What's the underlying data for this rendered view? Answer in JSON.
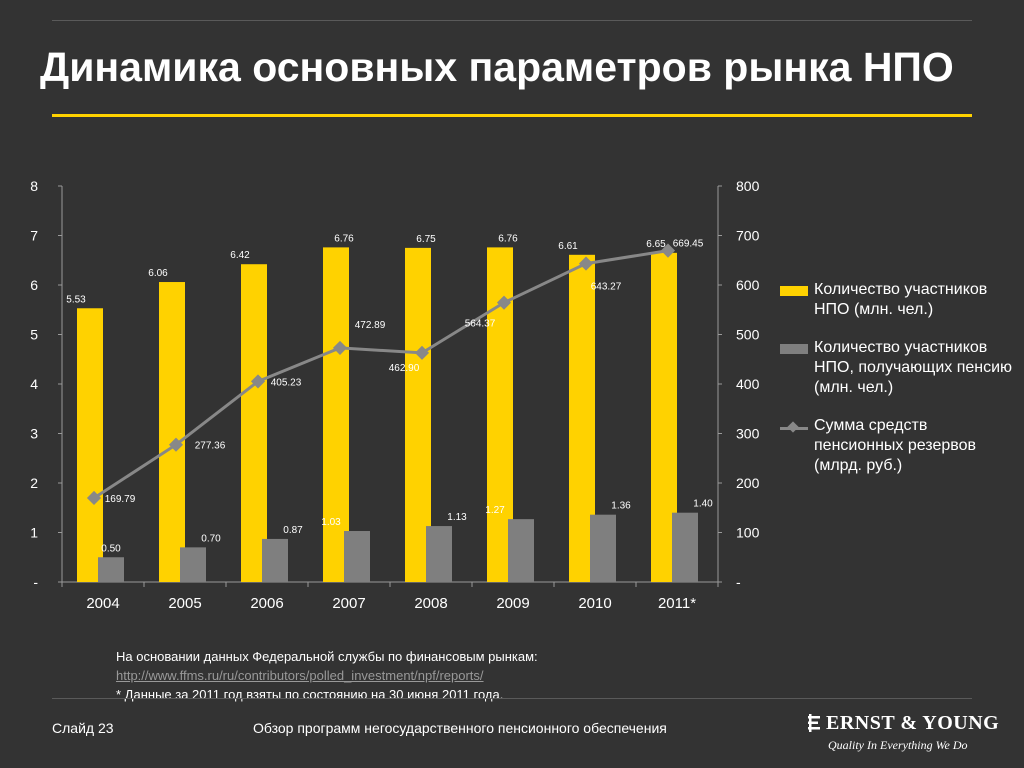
{
  "slide": {
    "title": "Динамика основных параметров рынка НПО",
    "slide_number": "Слайд 23",
    "footer_title": "Обзор программ негосударственного пенсионного обеспечения"
  },
  "source": {
    "line1": "На основании данных  Федеральной службы по финансовым рынкам:",
    "link": "http://www.ffms.ru/ru/contributors/polled_investment/npf/reports/",
    "note": "* Данные за 2011 год взяты по состоянию на 30 июня 2011 года."
  },
  "logo": {
    "wordmark": "ERNST & YOUNG",
    "tagline": "Quality In Everything We Do"
  },
  "colors": {
    "accent": "#ffd200",
    "bar_gray": "#7f7f7f",
    "line_gray": "#888888",
    "background": "#333333"
  },
  "chart_data": {
    "type": "bar",
    "categories": [
      "2004",
      "2005",
      "2006",
      "2007",
      "2008",
      "2009",
      "2010",
      "2011*"
    ],
    "y_left": {
      "ylim": [
        0,
        8
      ],
      "ticks": [
        "-",
        "1",
        "2",
        "3",
        "4",
        "5",
        "6",
        "7",
        "8"
      ]
    },
    "y_right": {
      "ylim": [
        0,
        800
      ],
      "ticks": [
        "-",
        "100",
        "200",
        "300",
        "400",
        "500",
        "600",
        "700",
        "800"
      ]
    },
    "series": [
      {
        "name": "Количество участников НПО (млн. чел.)",
        "type": "bar",
        "axis": "left",
        "color": "#ffd200",
        "values": [
          5.53,
          6.06,
          6.42,
          6.76,
          6.75,
          6.76,
          6.61,
          6.65
        ],
        "labels": [
          "5.53",
          "6.06",
          "6.42",
          "6.76",
          "6.75",
          "6.76",
          "6.61",
          "6.65"
        ]
      },
      {
        "name": "Количество участников НПО, получающих пенсию (млн. чел.)",
        "type": "bar",
        "axis": "left",
        "color": "#7f7f7f",
        "values": [
          0.5,
          0.7,
          0.87,
          1.03,
          1.13,
          1.27,
          1.36,
          1.4
        ],
        "labels": [
          "0.50",
          "0.70",
          "0.87",
          "1.03",
          "1.13",
          "1.27",
          "1.36",
          "1.40"
        ]
      },
      {
        "name": "Сумма средств пенсионных резервов (млрд. руб.)",
        "type": "line",
        "axis": "right",
        "color": "#888888",
        "marker": "diamond",
        "values": [
          169.79,
          277.36,
          405.23,
          472.89,
          462.9,
          564.37,
          643.27,
          669.45
        ],
        "labels": [
          "169.79",
          "277.36",
          "405.23",
          "472.89",
          "462.90",
          "564.37",
          "643.27",
          "669.45"
        ]
      }
    ],
    "legend_position": "right",
    "grid": false
  }
}
